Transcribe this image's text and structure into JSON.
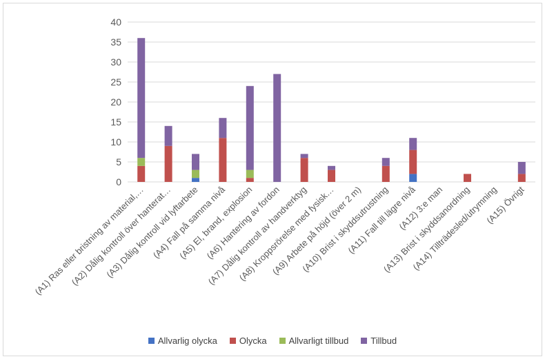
{
  "chart_data": {
    "type": "bar",
    "stacked": true,
    "title": "",
    "xlabel": "",
    "ylabel": "",
    "ylim": [
      0,
      40
    ],
    "yticks": [
      0,
      5,
      10,
      15,
      20,
      25,
      30,
      35,
      40
    ],
    "grid": true,
    "legend_position": "bottom",
    "categories": [
      "(A1) Ras eller bristning av material,…",
      "(A2) Dålig kontroll över hanterat…",
      "(A3) Dålig kontroll vid lyftarbete",
      "(A4) Fall på samma nivå",
      "(A5) El, brand, explosion",
      "(A6) Hantering av fordon",
      "(A7) Dålig kontroll av handverktyg",
      "(A8) Kroppsrörelse med fysisk…",
      "(A9) Arbete på höjd (över 2 m)",
      "(A10) Brist i skyddsutrustning",
      "(A11) Fall till lägre nivå",
      "(A12) 3:e man",
      "(A13) Brist i skyddsanordning",
      "(A14) Tillträdesled/utrymning",
      "(A15) Övrigt"
    ],
    "series": [
      {
        "name": "Allvarlig olycka",
        "color": "#4472c4",
        "values": [
          0,
          0,
          1,
          0,
          0,
          0,
          0,
          0,
          0,
          0,
          2,
          0,
          0,
          0,
          0
        ]
      },
      {
        "name": "Olycka",
        "color": "#c0504d",
        "values": [
          4,
          9,
          0,
          11,
          1,
          0,
          6,
          3,
          0,
          4,
          6,
          0,
          2,
          0,
          2
        ]
      },
      {
        "name": "Allvarligt tillbud",
        "color": "#9bbb59",
        "values": [
          2,
          0,
          2,
          0,
          2,
          0,
          0,
          0,
          0,
          0,
          0,
          0,
          0,
          0,
          0
        ]
      },
      {
        "name": "Tillbud",
        "color": "#8064a2",
        "values": [
          30,
          5,
          4,
          5,
          21,
          27,
          1,
          1,
          0,
          2,
          3,
          0,
          0,
          0,
          3
        ]
      }
    ]
  }
}
